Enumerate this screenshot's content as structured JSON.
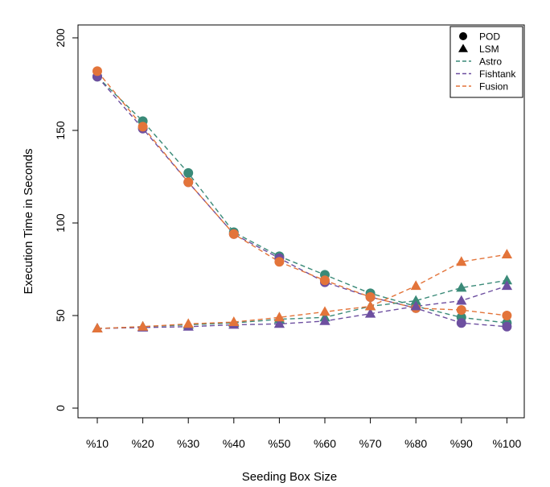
{
  "chart_data": {
    "type": "line",
    "xlabel": "Seeding Box Size",
    "ylabel": "Execution Time in Seconds",
    "categories": [
      "%10",
      "%20",
      "%30",
      "%40",
      "%50",
      "%60",
      "%70",
      "%80",
      "%90",
      "%100"
    ],
    "ylim": [
      0,
      200
    ],
    "yticks": [
      0,
      50,
      100,
      150,
      200
    ],
    "grid": false,
    "legend_position": "top-right",
    "legend": [
      {
        "label": "POD",
        "marker": "circle"
      },
      {
        "label": "LSM",
        "marker": "triangle"
      },
      {
        "label": "Astro",
        "color": "#3a8a78",
        "style": "dashed"
      },
      {
        "label": "Fishtank",
        "color": "#6d4fa0",
        "style": "dashed"
      },
      {
        "label": "Fusion",
        "color": "#e3743a",
        "style": "dashed"
      }
    ],
    "series": [
      {
        "dataset": "Astro",
        "method": "POD",
        "color": "#3a8a78",
        "values": [
          179,
          155,
          127,
          95,
          82,
          72,
          62,
          55,
          49,
          46
        ]
      },
      {
        "dataset": "Fishtank",
        "method": "POD",
        "color": "#6d4fa0",
        "values": [
          179,
          151,
          122,
          94,
          81,
          68,
          60,
          54,
          46,
          44
        ]
      },
      {
        "dataset": "Fusion",
        "method": "POD",
        "color": "#e3743a",
        "values": [
          182,
          152,
          122,
          94,
          79,
          69,
          60,
          54,
          53,
          50
        ]
      },
      {
        "dataset": "Astro",
        "method": "LSM",
        "color": "#3a8a78",
        "values": [
          43,
          44,
          45,
          46,
          48,
          49,
          55,
          58,
          65,
          69
        ]
      },
      {
        "dataset": "Fishtank",
        "method": "LSM",
        "color": "#6d4fa0",
        "values": [
          43,
          43.5,
          44,
          45,
          45.5,
          47,
          51,
          55,
          58,
          66
        ]
      },
      {
        "dataset": "Fusion",
        "method": "LSM",
        "color": "#e3743a",
        "values": [
          43,
          44,
          45.5,
          46.5,
          49,
          52,
          55,
          66,
          79,
          83
        ]
      }
    ]
  }
}
